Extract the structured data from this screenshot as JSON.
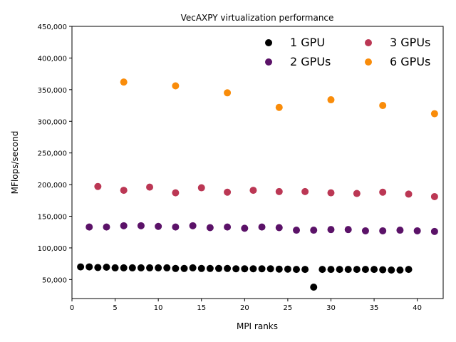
{
  "chart_data": {
    "type": "scatter",
    "title": "VecAXPY virtualization performance",
    "xlabel": "MPI ranks",
    "ylabel": "MFlops/second",
    "xlim": [
      0,
      43
    ],
    "ylim": [
      20000,
      450000
    ],
    "xticks": [
      0,
      5,
      10,
      15,
      20,
      25,
      30,
      35,
      40
    ],
    "xtick_labels": [
      "0",
      "5",
      "10",
      "15",
      "20",
      "25",
      "30",
      "35",
      "40"
    ],
    "yticks": [
      50000,
      100000,
      150000,
      200000,
      250000,
      300000,
      350000,
      400000,
      450000
    ],
    "ytick_labels": [
      "50,000",
      "100,000",
      "150,000",
      "200,000",
      "250,000",
      "300,000",
      "350,000",
      "400,000",
      "450,000"
    ],
    "grid": false,
    "legend_position": "top-right",
    "series": [
      {
        "name": "1 GPU",
        "color": "#000000",
        "points": [
          [
            1,
            70000
          ],
          [
            2,
            70000
          ],
          [
            3,
            69000
          ],
          [
            4,
            69500
          ],
          [
            5,
            68500
          ],
          [
            6,
            68500
          ],
          [
            7,
            68500
          ],
          [
            8,
            68500
          ],
          [
            9,
            68500
          ],
          [
            10,
            68500
          ],
          [
            11,
            68500
          ],
          [
            12,
            67500
          ],
          [
            13,
            67500
          ],
          [
            14,
            68500
          ],
          [
            15,
            67500
          ],
          [
            16,
            67500
          ],
          [
            17,
            67500
          ],
          [
            18,
            67500
          ],
          [
            19,
            67000
          ],
          [
            20,
            67000
          ],
          [
            21,
            67000
          ],
          [
            22,
            67000
          ],
          [
            23,
            67000
          ],
          [
            24,
            66500
          ],
          [
            25,
            66500
          ],
          [
            26,
            66000
          ],
          [
            27,
            66000
          ],
          [
            28,
            38000
          ],
          [
            29,
            66000
          ],
          [
            30,
            66000
          ],
          [
            31,
            66000
          ],
          [
            32,
            66000
          ],
          [
            33,
            66000
          ],
          [
            34,
            66000
          ],
          [
            35,
            66000
          ],
          [
            36,
            65500
          ],
          [
            37,
            65000
          ],
          [
            38,
            65000
          ],
          [
            39,
            66000
          ]
        ]
      },
      {
        "name": "2 GPUs",
        "color": "#5b1268",
        "points": [
          [
            2,
            133000
          ],
          [
            4,
            133000
          ],
          [
            6,
            135000
          ],
          [
            8,
            135000
          ],
          [
            10,
            134000
          ],
          [
            12,
            133000
          ],
          [
            14,
            135000
          ],
          [
            16,
            132000
          ],
          [
            18,
            133000
          ],
          [
            20,
            131000
          ],
          [
            22,
            133000
          ],
          [
            24,
            132000
          ],
          [
            26,
            128000
          ],
          [
            28,
            128000
          ],
          [
            30,
            129000
          ],
          [
            32,
            129000
          ],
          [
            34,
            127000
          ],
          [
            36,
            127000
          ],
          [
            38,
            128000
          ],
          [
            40,
            127000
          ],
          [
            42,
            126000
          ]
        ]
      },
      {
        "name": "3 GPUs",
        "color": "#bb3754",
        "points": [
          [
            3,
            197000
          ],
          [
            6,
            191000
          ],
          [
            9,
            196000
          ],
          [
            12,
            187000
          ],
          [
            15,
            195000
          ],
          [
            18,
            188000
          ],
          [
            21,
            191000
          ],
          [
            24,
            189000
          ],
          [
            27,
            189000
          ],
          [
            30,
            187000
          ],
          [
            33,
            186000
          ],
          [
            36,
            188000
          ],
          [
            39,
            185000
          ],
          [
            42,
            181000
          ]
        ]
      },
      {
        "name": "6 GPUs",
        "color": "#f98c0a",
        "points": [
          [
            6,
            362000
          ],
          [
            12,
            356000
          ],
          [
            18,
            345000
          ],
          [
            24,
            322000
          ],
          [
            30,
            334000
          ],
          [
            36,
            325000
          ],
          [
            42,
            312000
          ]
        ]
      }
    ]
  }
}
